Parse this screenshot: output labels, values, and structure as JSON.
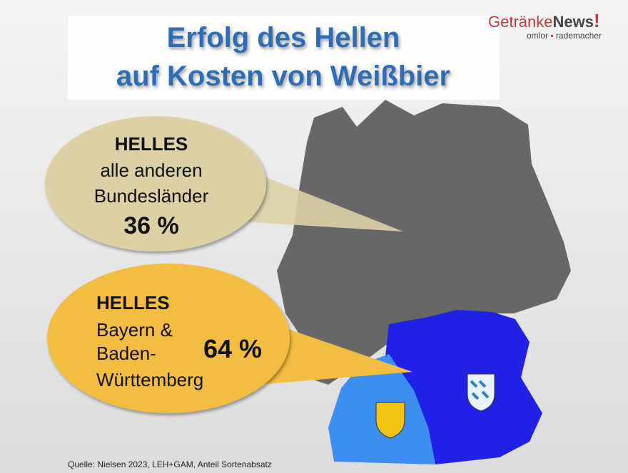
{
  "header": {
    "title_lines": [
      "Erfolg des Hellen",
      "auf Kosten von Weißbier"
    ]
  },
  "logo": {
    "brand_1": "Getränke",
    "brand_2": "News",
    "brand_3": "!",
    "tagline_1": "omlor",
    "tagline_2": "rademacher"
  },
  "callouts": [
    {
      "lines": [
        "HELLES",
        "alle anderen",
        "Bundesländer"
      ],
      "value": "36 %"
    },
    {
      "lines": [
        "HELLES",
        "Bayern &",
        "Baden-",
        "Württemberg"
      ],
      "value": "64 %"
    }
  ],
  "source": "Quelle: Nielsen 2023, LEH+GAM, Anteil Sortenabsatz"
}
